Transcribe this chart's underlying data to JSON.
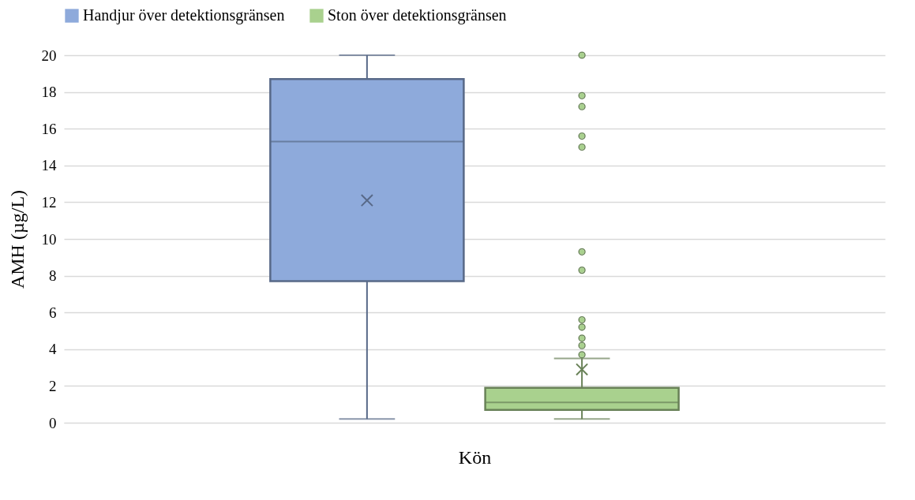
{
  "chart_data": {
    "type": "box",
    "xlabel": "Kön",
    "ylabel": "AMH (µg/L)",
    "categories": [
      null,
      null
    ],
    "ylim": [
      0,
      20
    ],
    "yticks": [
      0,
      2,
      4,
      6,
      8,
      10,
      12,
      14,
      16,
      18,
      20
    ],
    "grid": "y",
    "legend": "top",
    "series": [
      {
        "name": "Handjur över detektionsgränsen",
        "color": "#8eaadb",
        "boxes": [
          {
            "low": 0.2,
            "q1": 7.7,
            "median": 15.3,
            "q3": 18.7,
            "high": 20,
            "mean": 12.1
          },
          null
        ]
      },
      {
        "name": "Ston över detektionsgränsen",
        "color": "#a9d18e",
        "boxes": [
          null,
          {
            "low": 0.2,
            "q1": 0.7,
            "median": 1.1,
            "q3": 1.9,
            "high": 3.5,
            "mean": 2.9,
            "outliers": [
              3.7,
              4.2,
              4.6,
              5.2,
              5.6,
              8.3,
              9.3,
              15.0,
              15.6,
              17.2,
              17.8,
              20
            ]
          }
        ]
      }
    ]
  }
}
